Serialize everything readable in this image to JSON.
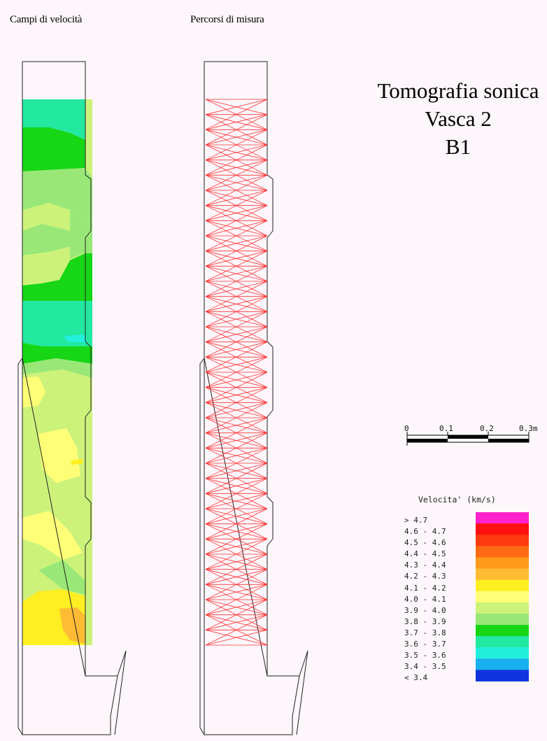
{
  "captions": {
    "velocity_fields": "Campi di velocità",
    "measurement_paths": "Percorsi di misura"
  },
  "title": {
    "line1": "Tomografia sonica",
    "line2": "Vasca 2",
    "line3": "B1"
  },
  "scale_bar": {
    "labels": [
      "0",
      "0.1",
      "0.2",
      "0.3m"
    ]
  },
  "legend": {
    "title": "Velocita' (km/s)",
    "classes": [
      {
        "label": "> 4.7",
        "color": "#ff22cc"
      },
      {
        "label": "4.6 - 4.7",
        "color": "#ff1010"
      },
      {
        "label": "4.5 - 4.6",
        "color": "#ff3a10"
      },
      {
        "label": "4.4 - 4.5",
        "color": "#ff6a14"
      },
      {
        "label": "4.3 - 4.4",
        "color": "#ff9a1a"
      },
      {
        "label": "4.2 - 4.3",
        "color": "#ffbb33"
      },
      {
        "label": "4.1 - 4.2",
        "color": "#ffee22"
      },
      {
        "label": "4.0 - 4.1",
        "color": "#ffff77"
      },
      {
        "label": "3.9 - 4.0",
        "color": "#ccf27a"
      },
      {
        "label": "3.8 - 3.9",
        "color": "#99e877"
      },
      {
        "label": "3.7 - 3.8",
        "color": "#16d616"
      },
      {
        "label": "3.6 - 3.7",
        "color": "#22e8a0"
      },
      {
        "label": "3.5 - 3.6",
        "color": "#22f0dd"
      },
      {
        "label": "3.4 - 3.5",
        "color": "#1ab0f0"
      },
      {
        "label": "< 3.4",
        "color": "#1133dd"
      }
    ]
  }
}
